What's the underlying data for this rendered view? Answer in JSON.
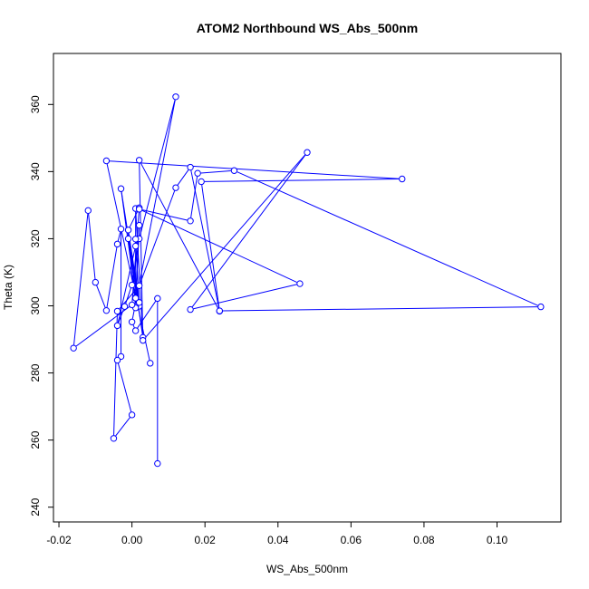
{
  "chart_data": {
    "type": "line",
    "title": "ATOM2 Northbound WS_Abs_500nm",
    "xlabel": "WS_Abs_500nm",
    "ylabel": "Theta (K)",
    "xlim": [
      -0.0215,
      0.1175
    ],
    "ylim": [
      235.6,
      375.2
    ],
    "x_ticks": [
      -0.02,
      0.0,
      0.02,
      0.04,
      0.06,
      0.08,
      0.1
    ],
    "x_tick_labels": [
      "-0.02",
      "0.00",
      "0.02",
      "0.04",
      "0.06",
      "0.08",
      "0.10"
    ],
    "y_ticks": [
      240,
      260,
      280,
      300,
      320,
      340,
      360
    ],
    "y_tick_labels": [
      "240",
      "260",
      "280",
      "300",
      "320",
      "340",
      "360"
    ],
    "grid": false,
    "line_color": "#0000ff",
    "marker": "open-circle",
    "series": [
      {
        "x": [
          0.007,
          0.007,
          0.001,
          0.0,
          0.012,
          0.002,
          0.0,
          -0.002,
          -0.004,
          0.001,
          0.001,
          0.002,
          0.002,
          -0.003,
          0.001,
          0.001,
          0.003,
          -0.001,
          0.001,
          0.002,
          0.001,
          0.001,
          0.002,
          -0.001,
          0.002,
          0.0,
          -0.016,
          -0.012,
          -0.01,
          -0.007,
          -0.004,
          -0.003,
          -0.003,
          -0.004,
          0.0,
          -0.005,
          -0.004,
          0.002,
          0.012,
          0.016,
          0.024,
          0.002,
          0.003,
          0.048,
          0.016,
          0.046,
          0.002,
          0.016,
          0.018,
          0.028,
          0.112,
          0.024,
          0.019,
          0.074,
          -0.007,
          0.005
        ],
        "y": [
          253.0,
          302.2,
          292.6,
          295.2,
          362.3,
          320.0,
          306.2,
          299.8,
          294.1,
          317.8,
          319.9,
          300.3,
          299.9,
          334.9,
          302.4,
          329.0,
          290.6,
          320.0,
          299.8,
          324.0,
          302.3,
          299.4,
          301.0,
          322.6,
          329.2,
          300.3,
          287.4,
          328.4,
          307.0,
          298.6,
          318.4,
          322.9,
          284.9,
          283.8,
          267.5,
          260.5,
          298.4,
          306.0,
          335.2,
          341.3,
          298.4,
          343.4,
          289.7,
          345.7,
          298.9,
          306.6,
          328.8,
          325.3,
          339.5,
          340.3,
          299.7,
          298.5,
          337.0,
          337.8,
          343.2,
          282.9
        ]
      }
    ]
  }
}
